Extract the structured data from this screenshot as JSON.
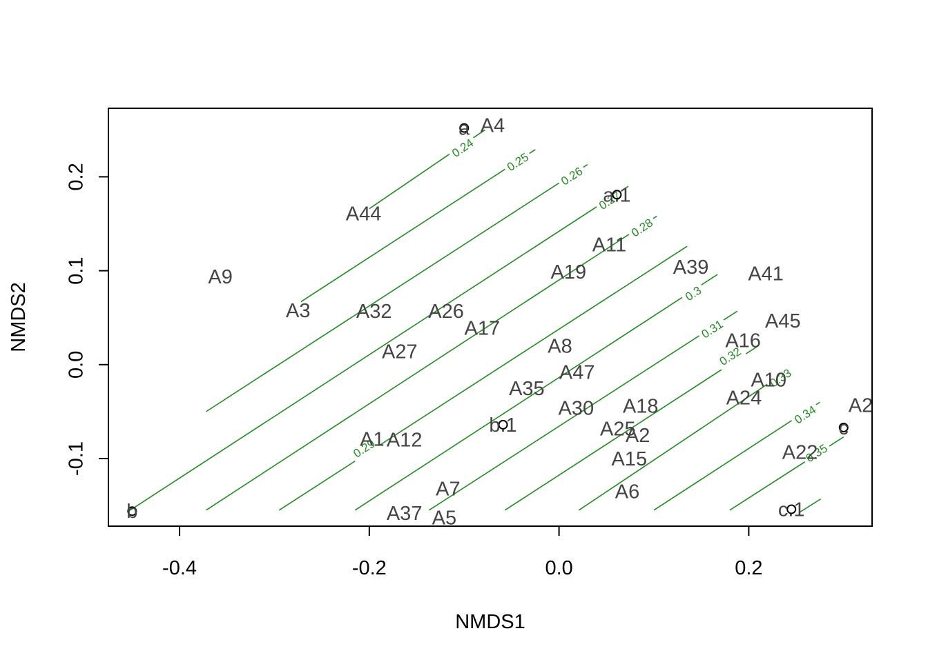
{
  "chart_data": {
    "type": "scatter",
    "title": "",
    "xlabel": "NMDS1",
    "ylabel": "NMDS2",
    "xlim": [
      -0.475,
      0.33
    ],
    "ylim": [
      -0.172,
      0.273
    ],
    "x_ticks": [
      -0.4,
      -0.2,
      0.0,
      0.2
    ],
    "x_tick_labels": [
      "-0.4",
      "-0.2",
      "0.0",
      "0.2"
    ],
    "y_ticks": [
      -0.1,
      0.0,
      0.1,
      0.2
    ],
    "y_tick_labels": [
      "-0.1",
      "0.0",
      "0.1",
      "0.2"
    ],
    "grid": false,
    "site_labels": [
      {
        "label": "A4",
        "x": -0.07,
        "y": 0.255
      },
      {
        "label": "A44",
        "x": -0.206,
        "y": 0.161
      },
      {
        "label": "A9",
        "x": -0.357,
        "y": 0.094
      },
      {
        "label": "A3",
        "x": -0.275,
        "y": 0.058
      },
      {
        "label": "A32",
        "x": -0.195,
        "y": 0.057
      },
      {
        "label": "A26",
        "x": -0.119,
        "y": 0.057
      },
      {
        "label": "A17",
        "x": -0.081,
        "y": 0.039
      },
      {
        "label": "A27",
        "x": -0.168,
        "y": 0.014
      },
      {
        "label": "A11",
        "x": 0.053,
        "y": 0.128
      },
      {
        "label": "A19",
        "x": 0.01,
        "y": 0.099
      },
      {
        "label": "A39",
        "x": 0.139,
        "y": 0.104
      },
      {
        "label": "A41",
        "x": 0.218,
        "y": 0.097
      },
      {
        "label": "A45",
        "x": 0.236,
        "y": 0.047
      },
      {
        "label": "A16",
        "x": 0.194,
        "y": 0.026
      },
      {
        "label": "A8",
        "x": 0.001,
        "y": 0.02
      },
      {
        "label": "A47",
        "x": 0.019,
        "y": -0.008
      },
      {
        "label": "A35",
        "x": -0.034,
        "y": -0.025
      },
      {
        "label": "A10",
        "x": 0.221,
        "y": -0.016
      },
      {
        "label": "A24",
        "x": 0.195,
        "y": -0.035
      },
      {
        "label": "A18",
        "x": 0.086,
        "y": -0.044
      },
      {
        "label": "A30",
        "x": 0.018,
        "y": -0.046
      },
      {
        "label": "A2",
        "x": 0.318,
        "y": -0.043
      },
      {
        "label": "A1",
        "x": -0.197,
        "y": -0.079
      },
      {
        "label": "A12",
        "x": -0.163,
        "y": -0.08
      },
      {
        "label": "A25",
        "x": 0.062,
        "y": -0.068
      },
      {
        "label": "A2",
        "x": 0.083,
        "y": -0.075
      },
      {
        "label": "A15",
        "x": 0.074,
        "y": -0.1
      },
      {
        "label": "A22",
        "x": 0.254,
        "y": -0.093
      },
      {
        "label": "A7",
        "x": -0.117,
        "y": -0.132
      },
      {
        "label": "A6",
        "x": 0.072,
        "y": -0.135
      },
      {
        "label": "A37",
        "x": -0.163,
        "y": -0.158
      },
      {
        "label": "A5",
        "x": -0.121,
        "y": -0.163
      }
    ],
    "centroids": [
      {
        "label": "a",
        "x": -0.1,
        "y": 0.252
      },
      {
        "label": "a.1",
        "x": 0.061,
        "y": 0.181
      },
      {
        "label": "b.1",
        "x": -0.059,
        "y": -0.064
      },
      {
        "label": "b",
        "x": -0.45,
        "y": -0.156
      },
      {
        "label": "c",
        "x": 0.3,
        "y": -0.067
      },
      {
        "label": "c.1",
        "x": 0.245,
        "y": -0.154
      }
    ],
    "contours": {
      "color": "#228B22",
      "levels": [
        {
          "level": "0.24",
          "from": [
            -0.2,
            0.166
          ],
          "to": [
            -0.078,
            0.25
          ]
        },
        {
          "level": "0.25",
          "from": [
            -0.272,
            0.067
          ],
          "to": [
            -0.025,
            0.229
          ]
        },
        {
          "level": "0.26",
          "from": [
            -0.372,
            -0.05
          ],
          "to": [
            0.03,
            0.213
          ]
        },
        {
          "level": "0.27",
          "from": [
            -0.452,
            -0.155
          ],
          "to": [
            0.073,
            0.19
          ]
        },
        {
          "level": "0.28",
          "from": [
            -0.372,
            -0.155
          ],
          "to": [
            0.103,
            0.158
          ]
        },
        {
          "level": "0.29",
          "from": [
            -0.295,
            -0.155
          ],
          "to": [
            0.135,
            0.126
          ]
        },
        {
          "level": "0.3",
          "from": [
            -0.215,
            -0.155
          ],
          "to": [
            0.167,
            0.096
          ]
        },
        {
          "level": "0.31",
          "from": [
            -0.137,
            -0.155
          ],
          "to": [
            0.188,
            0.057
          ]
        },
        {
          "level": "0.32",
          "from": [
            -0.057,
            -0.155
          ],
          "to": [
            0.21,
            0.02
          ]
        },
        {
          "level": "0.33",
          "from": [
            0.021,
            -0.155
          ],
          "to": [
            0.24,
            -0.007
          ]
        },
        {
          "level": "0.34",
          "from": [
            0.1,
            -0.155
          ],
          "to": [
            0.275,
            -0.04
          ]
        },
        {
          "level": "0.35",
          "from": [
            0.18,
            -0.155
          ],
          "to": [
            0.3,
            -0.077
          ]
        },
        {
          "level": "",
          "from": [
            0.254,
            -0.157
          ],
          "to": [
            0.276,
            -0.143
          ]
        }
      ],
      "label_positions": [
        {
          "level": "0.24",
          "x": -0.101,
          "y": 0.23
        },
        {
          "level": "0.25",
          "x": -0.043,
          "y": 0.215
        },
        {
          "level": "0.26",
          "x": 0.014,
          "y": 0.2
        },
        {
          "level": "0.27",
          "x": 0.054,
          "y": 0.174
        },
        {
          "level": "0.28",
          "x": 0.088,
          "y": 0.145
        },
        {
          "level": "0.29",
          "x": -0.205,
          "y": -0.09
        },
        {
          "level": "0.3",
          "x": 0.142,
          "y": 0.075
        },
        {
          "level": "0.31",
          "x": 0.162,
          "y": 0.037
        },
        {
          "level": "0.32",
          "x": 0.181,
          "y": 0.008
        },
        {
          "level": "0.33",
          "x": 0.234,
          "y": -0.015
        },
        {
          "level": "0.34",
          "x": 0.26,
          "y": -0.054
        },
        {
          "level": "0.35",
          "x": 0.272,
          "y": -0.095
        }
      ]
    }
  }
}
